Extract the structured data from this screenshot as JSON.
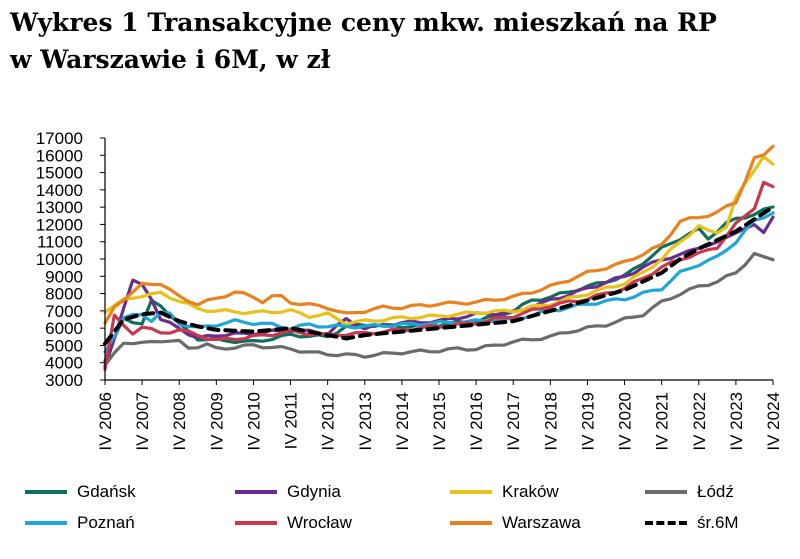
{
  "title_line1": "Wykres 1 Transakcyjne ceny mkw. mieszkań na RP",
  "title_line2": "w Warszawie i 6M, w zł",
  "chart_data": {
    "type": "line",
    "title": "Wykres 1 Transakcyjne ceny mkw. mieszkań na RP w Warszawie i 6M, w zł",
    "xlabel": "",
    "ylabel": "",
    "ylim": [
      3000,
      17000
    ],
    "yticks": [
      3000,
      4000,
      5000,
      6000,
      7000,
      8000,
      9000,
      10000,
      11000,
      12000,
      13000,
      14000,
      15000,
      16000,
      17000
    ],
    "x_tick_labels": [
      "IV 2006",
      "IV 2007",
      "IV 2008",
      "IV 2009",
      "IV 2010",
      "IV 2011",
      "IV 2012",
      "IV 2013",
      "IV 2014",
      "IV 2015",
      "IV 2016",
      "IV 2017",
      "IV 2018",
      "IV 2019",
      "IV 2020",
      "IV 2021",
      "IV 2022",
      "IV 2023",
      "IV 2024"
    ],
    "x_start": "IV 2006",
    "x_end": "IV 2024",
    "grid": false,
    "legend": "bottom",
    "series": [
      {
        "name": "Gdańsk",
        "color": "#0e6f5c",
        "dashed": false,
        "knots": [
          [
            0,
            4100
          ],
          [
            0.5,
            6600
          ],
          [
            1,
            6200
          ],
          [
            1.3,
            7800
          ],
          [
            2,
            6200
          ],
          [
            2.5,
            5400
          ],
          [
            3,
            5300
          ],
          [
            4,
            5200
          ],
          [
            5,
            5600
          ],
          [
            6,
            5500
          ],
          [
            6.5,
            6100
          ],
          [
            7,
            6200
          ],
          [
            8,
            6100
          ],
          [
            9,
            6200
          ],
          [
            10,
            6400
          ],
          [
            11,
            7000
          ],
          [
            11.5,
            7600
          ],
          [
            12,
            7800
          ],
          [
            13,
            8400
          ],
          [
            14,
            9000
          ],
          [
            14.5,
            9800
          ],
          [
            15,
            10600
          ],
          [
            15.5,
            11200
          ],
          [
            16,
            11700
          ],
          [
            16.3,
            11100
          ],
          [
            16.6,
            11900
          ],
          [
            17,
            12300
          ],
          [
            17.5,
            12600
          ],
          [
            18,
            13000
          ]
        ]
      },
      {
        "name": "Gdynia",
        "color": "#6a2c8e",
        "dashed": false,
        "knots": [
          [
            0,
            3700
          ],
          [
            0.5,
            7200
          ],
          [
            0.8,
            9000
          ],
          [
            1.2,
            8000
          ],
          [
            1.5,
            6500
          ],
          [
            2,
            6000
          ],
          [
            2.5,
            5400
          ],
          [
            3,
            5600
          ],
          [
            4,
            5700
          ],
          [
            5,
            5900
          ],
          [
            6,
            5700
          ],
          [
            6.5,
            6500
          ],
          [
            7,
            6000
          ],
          [
            8,
            6300
          ],
          [
            9,
            6400
          ],
          [
            10,
            6800
          ],
          [
            11,
            6900
          ],
          [
            12,
            7600
          ],
          [
            13,
            8300
          ],
          [
            14,
            9000
          ],
          [
            15,
            10000
          ],
          [
            15.5,
            10200
          ],
          [
            16,
            10700
          ],
          [
            16.5,
            10900
          ],
          [
            17,
            11600
          ],
          [
            17.5,
            11900
          ],
          [
            17.8,
            11500
          ],
          [
            18,
            12500
          ]
        ]
      },
      {
        "name": "Kraków",
        "color": "#e6c21a",
        "dashed": false,
        "knots": [
          [
            0,
            7000
          ],
          [
            0.5,
            7600
          ],
          [
            1,
            7900
          ],
          [
            1.5,
            8000
          ],
          [
            2,
            7600
          ],
          [
            2.5,
            7100
          ],
          [
            3,
            7000
          ],
          [
            4,
            6900
          ],
          [
            5,
            7000
          ],
          [
            5.5,
            6700
          ],
          [
            6,
            6800
          ],
          [
            6.5,
            6300
          ],
          [
            7,
            6400
          ],
          [
            8,
            6600
          ],
          [
            9,
            6700
          ],
          [
            10,
            6900
          ],
          [
            11,
            7000
          ],
          [
            12,
            7400
          ],
          [
            13,
            8000
          ],
          [
            14,
            8600
          ],
          [
            14.5,
            9200
          ],
          [
            15,
            10000
          ],
          [
            15.5,
            11000
          ],
          [
            16,
            11900
          ],
          [
            16.4,
            11400
          ],
          [
            16.8,
            12000
          ],
          [
            17,
            13500
          ],
          [
            17.5,
            15200
          ],
          [
            17.8,
            16100
          ],
          [
            18,
            15400
          ]
        ]
      },
      {
        "name": "Łódź",
        "color": "#6b6b6b",
        "dashed": false,
        "knots": [
          [
            0,
            3800
          ],
          [
            0.5,
            5200
          ],
          [
            1,
            5100
          ],
          [
            1.5,
            5300
          ],
          [
            2,
            5200
          ],
          [
            2.3,
            4800
          ],
          [
            2.7,
            5100
          ],
          [
            3,
            4800
          ],
          [
            4,
            5000
          ],
          [
            5,
            4800
          ],
          [
            5.5,
            4600
          ],
          [
            6,
            4500
          ],
          [
            7,
            4400
          ],
          [
            8,
            4600
          ],
          [
            9,
            4700
          ],
          [
            9.5,
            4800
          ],
          [
            10,
            4800
          ],
          [
            11,
            5200
          ],
          [
            12,
            5500
          ],
          [
            12.5,
            5800
          ],
          [
            13,
            6000
          ],
          [
            13.5,
            6200
          ],
          [
            14,
            6500
          ],
          [
            14.5,
            6800
          ],
          [
            15,
            7500
          ],
          [
            15.5,
            8000
          ],
          [
            16,
            8400
          ],
          [
            16.5,
            8700
          ],
          [
            17,
            9200
          ],
          [
            17.5,
            10300
          ],
          [
            17.8,
            10000
          ],
          [
            18,
            10000
          ]
        ]
      },
      {
        "name": "Poznań",
        "color": "#1fa6d8",
        "dashed": false,
        "knots": [
          [
            0,
            4600
          ],
          [
            0.5,
            6600
          ],
          [
            1,
            6800
          ],
          [
            1.3,
            6400
          ],
          [
            1.6,
            7100
          ],
          [
            2,
            6300
          ],
          [
            2.5,
            6000
          ],
          [
            3,
            6200
          ],
          [
            3.5,
            6400
          ],
          [
            4,
            6300
          ],
          [
            4.5,
            6200
          ],
          [
            5,
            6000
          ],
          [
            5.5,
            6200
          ],
          [
            6,
            6100
          ],
          [
            7,
            6100
          ],
          [
            8,
            6200
          ],
          [
            9,
            6300
          ],
          [
            10,
            6400
          ],
          [
            11,
            6500
          ],
          [
            12,
            7000
          ],
          [
            13,
            7400
          ],
          [
            14,
            7700
          ],
          [
            15,
            8300
          ],
          [
            15.5,
            9200
          ],
          [
            16,
            9700
          ],
          [
            16.5,
            10100
          ],
          [
            17,
            11000
          ],
          [
            17.5,
            12200
          ],
          [
            18,
            12700
          ]
        ]
      },
      {
        "name": "Wrocław",
        "color": "#c8384f",
        "dashed": false,
        "knots": [
          [
            0,
            3700
          ],
          [
            0.3,
            7300
          ],
          [
            0.6,
            5500
          ],
          [
            1,
            6100
          ],
          [
            1.5,
            5700
          ],
          [
            2,
            5900
          ],
          [
            2.5,
            5600
          ],
          [
            3,
            5300
          ],
          [
            4,
            5500
          ],
          [
            5,
            5800
          ],
          [
            6,
            5600
          ],
          [
            7,
            5700
          ],
          [
            8,
            5900
          ],
          [
            9,
            6100
          ],
          [
            10,
            6300
          ],
          [
            11,
            6700
          ],
          [
            12,
            7300
          ],
          [
            13,
            7700
          ],
          [
            14,
            8300
          ],
          [
            15,
            9500
          ],
          [
            15.5,
            10000
          ],
          [
            16,
            10300
          ],
          [
            16.5,
            10700
          ],
          [
            17,
            12000
          ],
          [
            17.5,
            13000
          ],
          [
            17.8,
            14700
          ],
          [
            18,
            14100
          ]
        ]
      },
      {
        "name": "Warszawa",
        "color": "#e8821e",
        "dashed": false,
        "knots": [
          [
            0,
            6200
          ],
          [
            0.3,
            7400
          ],
          [
            0.7,
            8000
          ],
          [
            1,
            8500
          ],
          [
            1.5,
            8600
          ],
          [
            2,
            7800
          ],
          [
            2.5,
            7400
          ],
          [
            3,
            7700
          ],
          [
            3.5,
            8100
          ],
          [
            4,
            7800
          ],
          [
            4.3,
            7500
          ],
          [
            4.6,
            8000
          ],
          [
            5,
            7500
          ],
          [
            6,
            7200
          ],
          [
            6.5,
            6800
          ],
          [
            7,
            7000
          ],
          [
            7.5,
            7200
          ],
          [
            8,
            7200
          ],
          [
            9,
            7400
          ],
          [
            10,
            7500
          ],
          [
            11,
            7800
          ],
          [
            12,
            8400
          ],
          [
            13,
            9200
          ],
          [
            13.5,
            9500
          ],
          [
            14,
            9800
          ],
          [
            14.5,
            10300
          ],
          [
            15,
            10800
          ],
          [
            15.5,
            12200
          ],
          [
            16,
            12400
          ],
          [
            16.5,
            12700
          ],
          [
            17,
            13300
          ],
          [
            17.5,
            15800
          ],
          [
            17.8,
            16000
          ],
          [
            18,
            16600
          ]
        ]
      },
      {
        "name": "śr.6M",
        "color": "#000000",
        "dashed": true,
        "knots": [
          [
            0,
            5100
          ],
          [
            0.5,
            6500
          ],
          [
            1,
            6800
          ],
          [
            1.5,
            6900
          ],
          [
            2,
            6400
          ],
          [
            2.5,
            6100
          ],
          [
            3,
            5900
          ],
          [
            4,
            5800
          ],
          [
            5,
            6000
          ],
          [
            6,
            5600
          ],
          [
            6.5,
            5400
          ],
          [
            7,
            5600
          ],
          [
            8,
            5800
          ],
          [
            9,
            6000
          ],
          [
            10,
            6200
          ],
          [
            11,
            6400
          ],
          [
            12,
            7000
          ],
          [
            13,
            7600
          ],
          [
            14,
            8200
          ],
          [
            14.5,
            8700
          ],
          [
            15,
            9200
          ],
          [
            15.5,
            10000
          ],
          [
            16,
            10600
          ],
          [
            16.5,
            11100
          ],
          [
            17,
            11600
          ],
          [
            17.5,
            12300
          ],
          [
            18,
            13000
          ]
        ]
      }
    ]
  }
}
